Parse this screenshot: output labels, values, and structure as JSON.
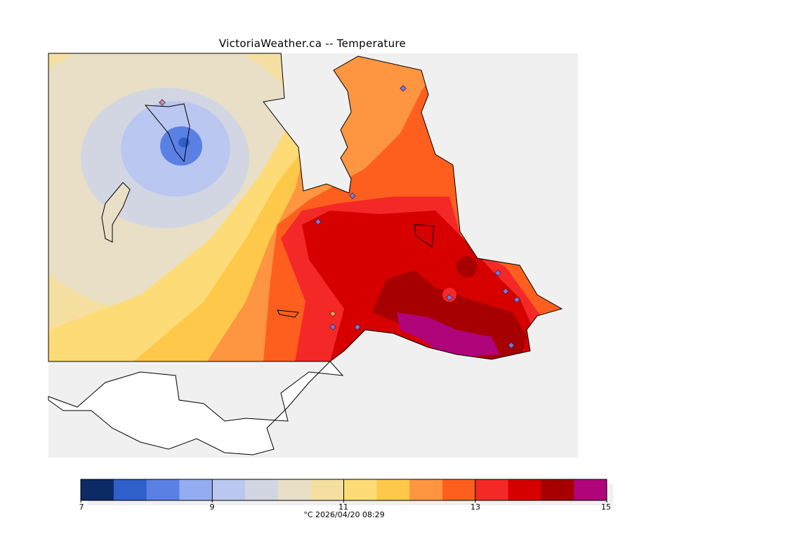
{
  "title": "VictoriaWeather.ca -- Temperature",
  "legend": {
    "min": 7,
    "max": 15,
    "step": 0.5,
    "colors": [
      "#0b2a66",
      "#2f5fc8",
      "#5a80e4",
      "#93adf0",
      "#bac7f0",
      "#d2d6e2",
      "#e8dfc6",
      "#f5dfa0",
      "#fddc78",
      "#fec84a",
      "#fe9540",
      "#fe5f1e",
      "#f52828",
      "#d60000",
      "#a60000",
      "#b0047a"
    ],
    "ticks": [
      "7",
      "9",
      "11",
      "13",
      "15"
    ],
    "caption": "°C  2026/04/20 08:29"
  },
  "colors": {
    "water": "#f0f0f0",
    "land_outside": "#ffffff",
    "station": "#8a6ee0"
  }
}
